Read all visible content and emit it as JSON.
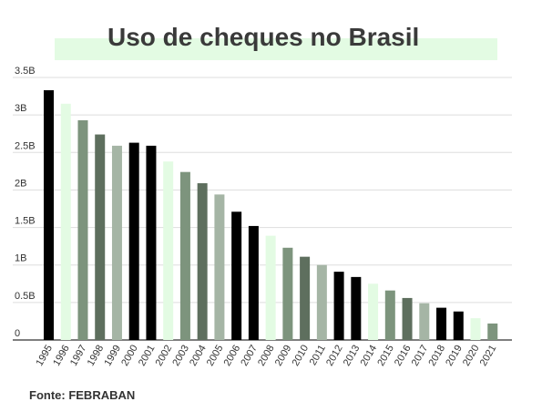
{
  "title": "Uso de cheques no Brasil",
  "source": "Fonte: FEBRABAN",
  "colors": {
    "background": "#ffffff",
    "title_band": "#e3fbe3",
    "gridline": "#dddddd",
    "baseline": "#333333",
    "text": "#333333"
  },
  "chart_data": {
    "type": "bar",
    "title": "Uso de cheques no Brasil",
    "xlabel": "",
    "ylabel": "",
    "ylim": [
      0,
      3.5
    ],
    "ytick_values": [
      0,
      0.5,
      1,
      1.5,
      2,
      2.5,
      3,
      3.5
    ],
    "ytick_labels": [
      "0",
      "0.5B",
      "1B",
      "1.5B",
      "2B",
      "2.5B",
      "3B",
      "3.5B"
    ],
    "grid": true,
    "legend": "none",
    "categories": [
      "1995",
      "1996",
      "1997",
      "1998",
      "1999",
      "2000",
      "2001",
      "2002",
      "2003",
      "2004",
      "2005",
      "2006",
      "2007",
      "2008",
      "2009",
      "2010",
      "2011",
      "2012",
      "2013",
      "2014",
      "2015",
      "2016",
      "2017",
      "2018",
      "2019",
      "2020",
      "2021"
    ],
    "values": [
      3.33,
      3.15,
      2.93,
      2.74,
      2.59,
      2.63,
      2.59,
      2.38,
      2.24,
      2.09,
      1.94,
      1.71,
      1.52,
      1.39,
      1.23,
      1.11,
      1.0,
      0.91,
      0.84,
      0.75,
      0.66,
      0.56,
      0.49,
      0.43,
      0.38,
      0.29,
      0.22
    ],
    "bar_colors": [
      "#000000",
      "#e3fbe3",
      "#7d947d",
      "#5e6f5e",
      "#a5b5a5",
      "#000000",
      "#000000",
      "#e3fbe3",
      "#7d947d",
      "#5e6f5e",
      "#a5b5a5",
      "#000000",
      "#000000",
      "#e3fbe3",
      "#7d947d",
      "#5e6f5e",
      "#a5b5a5",
      "#000000",
      "#000000",
      "#e3fbe3",
      "#7d947d",
      "#5e6f5e",
      "#a5b5a5",
      "#000000",
      "#000000",
      "#e3fbe3",
      "#7d947d"
    ]
  }
}
